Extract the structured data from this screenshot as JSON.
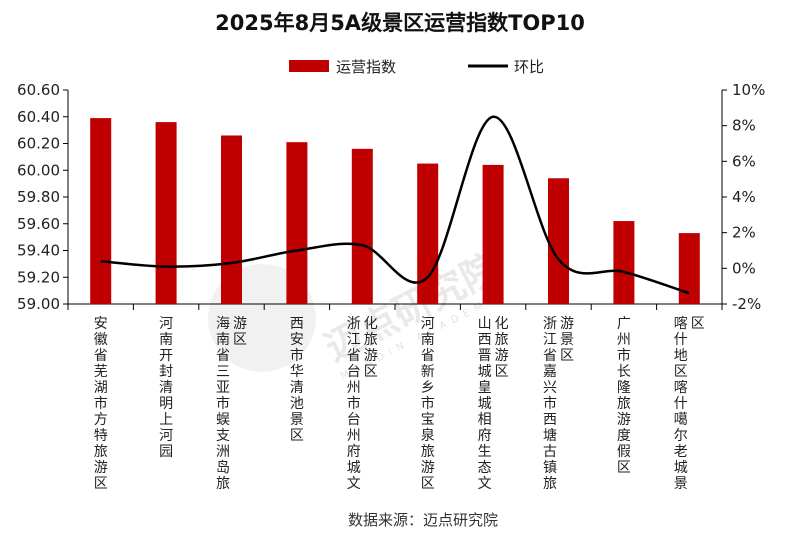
{
  "chart_data": {
    "type": "bar",
    "title": "2025年8月5A级景区运营指数TOP10",
    "categories": [
      "安徽省芜湖市方特旅游区",
      "河南开封清明上河园",
      "海南省三亚市蜈支洲岛旅游区",
      "西安市华清池景区",
      "浙江省台州市台州府城文化旅游区",
      "河南省新乡市宝泉旅游区",
      "山西晋城皇城相府生态文化旅游区",
      "浙江省嘉兴市西塘古镇旅游景区",
      "广州市长隆旅游度假区",
      "喀什地区喀什噶尔老城景区"
    ],
    "series": [
      {
        "name": "运营指数",
        "type": "bar",
        "axis": "left",
        "color": "#c00000",
        "values": [
          60.39,
          60.36,
          60.26,
          60.21,
          60.16,
          60.05,
          60.04,
          59.94,
          59.62,
          59.53
        ]
      },
      {
        "name": "环比",
        "type": "line",
        "axis": "right",
        "color": "#000000",
        "values": [
          0.4,
          0.1,
          0.3,
          1.0,
          1.3,
          -0.5,
          8.5,
          0.5,
          -0.2,
          -1.4
        ]
      }
    ],
    "y_left": {
      "min": 59.0,
      "max": 60.6,
      "step": 0.2,
      "ticks": [
        "59.00",
        "59.20",
        "59.40",
        "59.60",
        "59.80",
        "60.00",
        "60.20",
        "60.40",
        "60.60"
      ]
    },
    "y_right": {
      "min": -2,
      "max": 10,
      "step": 2,
      "ticks": [
        "-2%",
        "0%",
        "2%",
        "4%",
        "6%",
        "8%",
        "10%"
      ]
    },
    "legend": {
      "position": "top",
      "items": [
        "运营指数",
        "环比"
      ]
    },
    "grid": false
  },
  "source": "数据来源：迈点研究院",
  "watermark": {
    "text": "迈点研究院",
    "subtext": "MEADIN ACADEMY"
  }
}
